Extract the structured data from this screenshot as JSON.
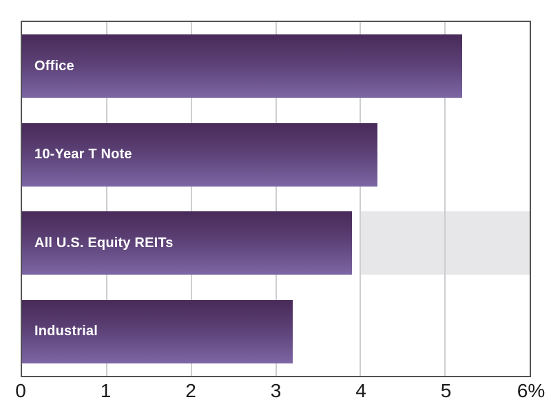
{
  "chart_data": {
    "type": "bar",
    "orientation": "horizontal",
    "title": "",
    "xlabel": "",
    "ylabel": "",
    "categories": [
      "Office",
      "10-Year T Note",
      "All U.S. Equity REITs",
      "Industrial"
    ],
    "values": [
      5.2,
      4.2,
      3.9,
      3.2
    ],
    "xlim": [
      0,
      6
    ],
    "tick_labels": [
      "0",
      "1",
      "2",
      "3",
      "4",
      "5",
      "6%"
    ],
    "gridlines": [
      1,
      2,
      3,
      4,
      5
    ],
    "grid": true,
    "legend": false,
    "highlight_band": {
      "category": "All U.S. Equity REITs",
      "from": 4,
      "to": 6,
      "color": "#e7e7e9"
    },
    "colors": {
      "bar_gradient_top": "#482a58",
      "bar_gradient_mid": "#5e4379",
      "bar_gradient_bottom": "#7c66a4",
      "bar_label_text": "#ffffff",
      "grid_line": "#cdced0",
      "plot_border": "#525254",
      "axis_text": "#1a1a1c",
      "background": "#ffffff"
    }
  }
}
